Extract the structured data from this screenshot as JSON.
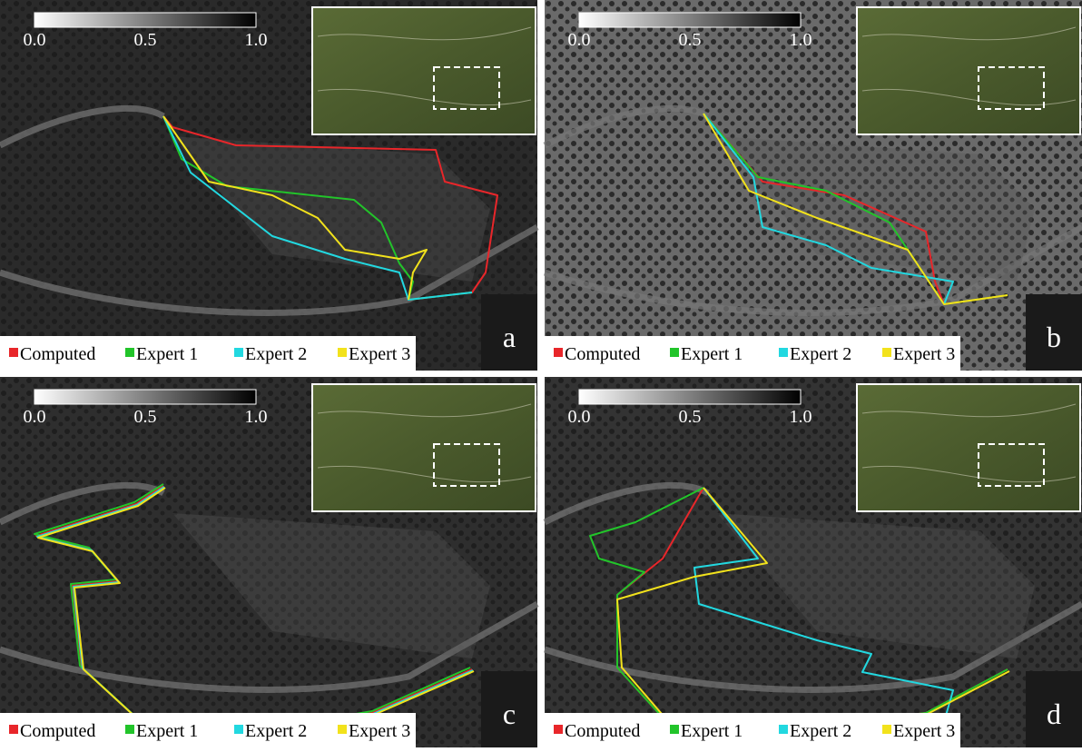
{
  "panels": [
    {
      "label": "a",
      "colorbar": {
        "ticks": [
          "0.0",
          "0.5",
          "1.0"
        ]
      },
      "legend": [
        {
          "name": "Computed",
          "color": "#e8262a"
        },
        {
          "name": "Expert 1",
          "color": "#22c42a"
        },
        {
          "name": "Expert 2",
          "color": "#22d8e0"
        },
        {
          "name": "Expert 3",
          "color": "#f2e21c"
        }
      ]
    },
    {
      "label": "b",
      "colorbar": {
        "ticks": [
          "0.0",
          "0.5",
          "1.0"
        ]
      },
      "legend": [
        {
          "name": "Computed",
          "color": "#e8262a"
        },
        {
          "name": "Expert 1",
          "color": "#22c42a"
        },
        {
          "name": "Expert 2",
          "color": "#22d8e0"
        },
        {
          "name": "Expert 3",
          "color": "#f2e21c"
        }
      ]
    },
    {
      "label": "c",
      "colorbar": {
        "ticks": [
          "0.0",
          "0.5",
          "1.0"
        ]
      },
      "legend": [
        {
          "name": "Computed",
          "color": "#e8262a"
        },
        {
          "name": "Expert 1",
          "color": "#22c42a"
        },
        {
          "name": "Expert 2",
          "color": "#22d8e0"
        },
        {
          "name": "Expert 3",
          "color": "#f2e21c"
        }
      ]
    },
    {
      "label": "d",
      "colorbar": {
        "ticks": [
          "0.0",
          "0.5",
          "1.0"
        ]
      },
      "legend": [
        {
          "name": "Computed",
          "color": "#e8262a"
        },
        {
          "name": "Expert 1",
          "color": "#22c42a"
        },
        {
          "name": "Expert 2",
          "color": "#22d8e0"
        },
        {
          "name": "Expert 3",
          "color": "#f2e21c"
        }
      ]
    }
  ]
}
